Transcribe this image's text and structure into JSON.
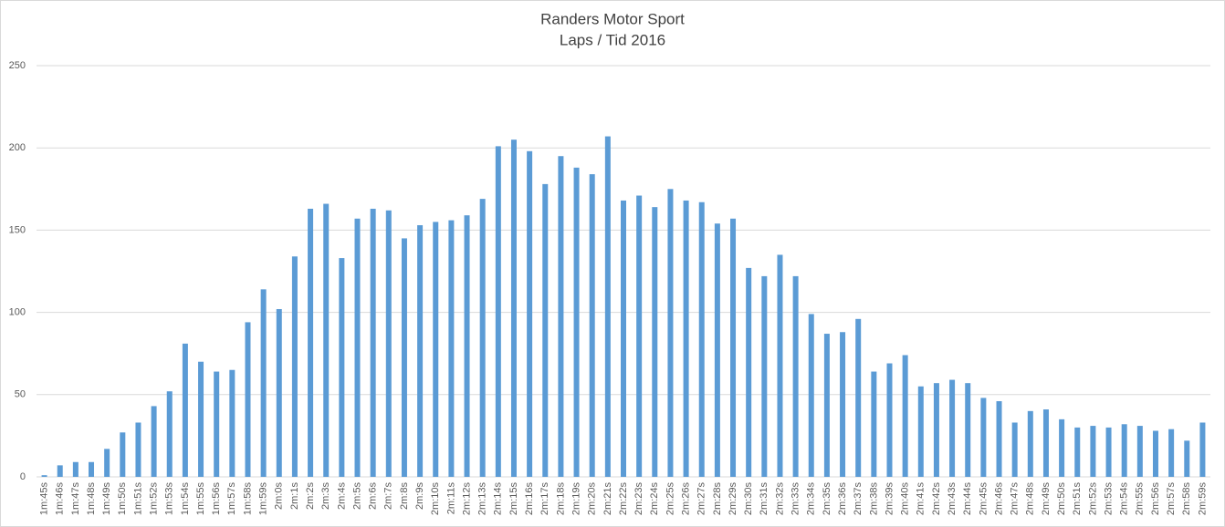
{
  "chart_data": {
    "type": "bar",
    "title": "Randers Motor Sport",
    "subtitle": "Laps / Tid 2016",
    "categories": [
      "1m:45s",
      "1m:46s",
      "1m:47s",
      "1m:48s",
      "1m:49s",
      "1m:50s",
      "1m:51s",
      "1m:52s",
      "1m:53s",
      "1m:54s",
      "1m:55s",
      "1m:56s",
      "1m:57s",
      "1m:58s",
      "1m:59s",
      "2m:0s",
      "2m:1s",
      "2m:2s",
      "2m:3s",
      "2m:4s",
      "2m:5s",
      "2m:6s",
      "2m:7s",
      "2m:8s",
      "2m:9s",
      "2m:10s",
      "2m:11s",
      "2m:12s",
      "2m:13s",
      "2m:14s",
      "2m:15s",
      "2m:16s",
      "2m:17s",
      "2m:18s",
      "2m:19s",
      "2m:20s",
      "2m:21s",
      "2m:22s",
      "2m:23s",
      "2m:24s",
      "2m:25s",
      "2m:26s",
      "2m:27s",
      "2m:28s",
      "2m:29s",
      "2m:30s",
      "2m:31s",
      "2m:32s",
      "2m:33s",
      "2m:34s",
      "2m:35s",
      "2m:36s",
      "2m:37s",
      "2m:38s",
      "2m:39s",
      "2m:40s",
      "2m:41s",
      "2m:42s",
      "2m:43s",
      "2m:44s",
      "2m:45s",
      "2m:46s",
      "2m:47s",
      "2m:48s",
      "2m:49s",
      "2m:50s",
      "2m:51s",
      "2m:52s",
      "2m:53s",
      "2m:54s",
      "2m:55s",
      "2m:56s",
      "2m:57s",
      "2m:58s",
      "2m:59s"
    ],
    "values": [
      1,
      7,
      9,
      9,
      17,
      27,
      33,
      43,
      52,
      81,
      70,
      64,
      65,
      94,
      114,
      102,
      134,
      163,
      166,
      133,
      157,
      163,
      162,
      145,
      153,
      155,
      156,
      159,
      169,
      201,
      205,
      198,
      178,
      195,
      188,
      184,
      207,
      168,
      171,
      164,
      175,
      168,
      167,
      154,
      157,
      127,
      122,
      135,
      122,
      99,
      87,
      88,
      96,
      64,
      69,
      74,
      55,
      57,
      59,
      57,
      48,
      46,
      33,
      40,
      41,
      35,
      30,
      31,
      30,
      32,
      31,
      28,
      29,
      22,
      33
    ],
    "color": "#5b9bd5",
    "ylim": [
      0,
      250
    ],
    "yticks": [
      0,
      50,
      100,
      150,
      200,
      250
    ],
    "grid": true
  }
}
